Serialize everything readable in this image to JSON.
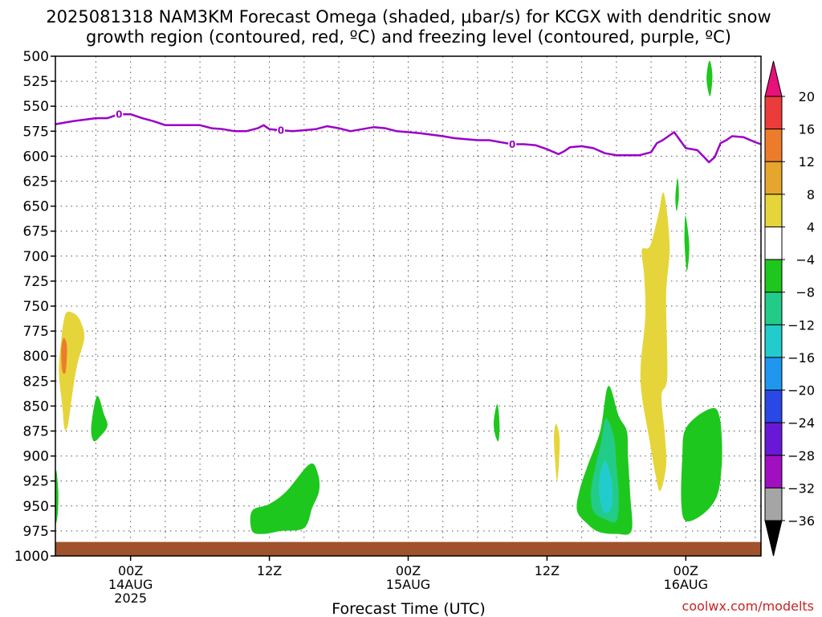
{
  "chart_data": {
    "type": "heatmap",
    "title_line1": "2025081318 NAM3KM Forecast Omega (shaded, μbar/s) for KCGX with dendritic snow",
    "title_line2": "growth region (contoured, red, ºC) and freezing level (contoured, purple, ºC)",
    "xlabel": "Forecast Time (UTC)",
    "credit": "coolwx.com/modelts",
    "yaxis": {
      "reversed": true,
      "range": [
        500,
        1000
      ],
      "ticks": [
        500,
        525,
        550,
        575,
        600,
        625,
        650,
        675,
        700,
        725,
        750,
        775,
        800,
        825,
        850,
        875,
        900,
        925,
        950,
        975,
        1000
      ]
    },
    "xaxis": {
      "range_hours": [
        -6.5,
        54.5
      ],
      "ticks": [
        {
          "hour": 0,
          "lines": [
            "00Z",
            "14AUG",
            "2025"
          ]
        },
        {
          "hour": 12,
          "lines": [
            "12Z"
          ]
        },
        {
          "hour": 24,
          "lines": [
            "00Z",
            "15AUG"
          ]
        },
        {
          "hour": 36,
          "lines": [
            "12Z"
          ]
        },
        {
          "hour": 48,
          "lines": [
            "00Z",
            "16AUG"
          ]
        }
      ],
      "grid_hours": [
        -3,
        0,
        3,
        6,
        9,
        12,
        15,
        18,
        21,
        24,
        27,
        30,
        33,
        36,
        39,
        42,
        45,
        48,
        51,
        54
      ]
    },
    "colorbar": {
      "labels": [
        "20",
        "16",
        "12",
        "8",
        "4",
        "−4",
        "−8",
        "−12",
        "−16",
        "−20",
        "−24",
        "−28",
        "−32",
        "−36"
      ],
      "bins": [
        {
          "color": "#e8107a"
        },
        {
          "color": "#ec3b3b"
        },
        {
          "color": "#ec7c2c"
        },
        {
          "color": "#e6a62e"
        },
        {
          "color": "#e6d53a"
        },
        {
          "color": "#ffffff"
        },
        {
          "color": "#1ec71e"
        },
        {
          "color": "#22cc88"
        },
        {
          "color": "#22cccc"
        },
        {
          "color": "#1f97ef"
        },
        {
          "color": "#2a48e6"
        },
        {
          "color": "#6a18d8"
        },
        {
          "color": "#a010c0"
        },
        {
          "color": "#a5a5a5"
        },
        {
          "color": "#000000"
        }
      ]
    },
    "freezing_level": {
      "color": "#9b00c8",
      "label": "0",
      "label_hours": [
        -1,
        13,
        33
      ],
      "points": [
        [
          -6.5,
          568
        ],
        [
          -5,
          565
        ],
        [
          -3,
          562
        ],
        [
          -2,
          562
        ],
        [
          -1,
          558
        ],
        [
          0,
          558
        ],
        [
          1,
          562
        ],
        [
          2,
          565
        ],
        [
          3,
          569
        ],
        [
          5,
          569
        ],
        [
          6,
          569
        ],
        [
          7,
          572
        ],
        [
          8,
          573
        ],
        [
          9,
          575
        ],
        [
          10,
          575
        ],
        [
          11,
          572
        ],
        [
          11.5,
          569
        ],
        [
          12,
          573
        ],
        [
          13,
          574
        ],
        [
          14,
          575
        ],
        [
          15,
          574
        ],
        [
          16,
          573
        ],
        [
          17,
          570
        ],
        [
          18,
          572
        ],
        [
          19,
          575
        ],
        [
          20,
          573
        ],
        [
          21,
          571
        ],
        [
          22,
          572
        ],
        [
          23,
          575
        ],
        [
          24,
          576
        ],
        [
          25,
          577
        ],
        [
          27,
          580
        ],
        [
          28,
          582
        ],
        [
          30,
          584
        ],
        [
          31,
          584
        ],
        [
          32,
          586
        ],
        [
          33,
          588
        ],
        [
          34,
          588
        ],
        [
          35,
          589
        ],
        [
          36,
          593
        ],
        [
          37,
          598
        ],
        [
          37.5,
          595
        ],
        [
          38,
          591
        ],
        [
          39,
          590
        ],
        [
          40,
          592
        ],
        [
          41,
          597
        ],
        [
          42,
          599
        ],
        [
          43,
          599
        ],
        [
          44,
          599
        ],
        [
          45,
          596
        ],
        [
          45.5,
          587
        ],
        [
          46,
          584
        ],
        [
          47,
          576
        ],
        [
          47.5,
          584
        ],
        [
          48,
          592
        ],
        [
          49,
          594
        ],
        [
          49.5,
          600
        ],
        [
          50,
          606
        ],
        [
          50.5,
          601
        ],
        [
          51,
          587
        ],
        [
          51.5,
          584
        ],
        [
          52,
          580
        ],
        [
          53,
          581
        ],
        [
          54,
          586
        ],
        [
          54.5,
          588
        ]
      ]
    },
    "ground_color": "#a0522d",
    "shaded_regions": [
      {
        "bin": "4 to 8",
        "color": "#e6d53a",
        "points": [
          [
            -5.5,
            756
          ],
          [
            -4.8,
            758
          ],
          [
            -4.3,
            766
          ],
          [
            -4,
            782
          ],
          [
            -4.6,
            808
          ],
          [
            -5,
            835
          ],
          [
            -5.4,
            868
          ],
          [
            -5.7,
            873
          ],
          [
            -5.9,
            850
          ],
          [
            -6.2,
            815
          ],
          [
            -6,
            785
          ],
          [
            -5.8,
            766
          ]
        ]
      },
      {
        "bin": "12 to 16",
        "color": "#ec7c2c",
        "points": [
          [
            -5.8,
            782
          ],
          [
            -5.5,
            790
          ],
          [
            -5.6,
            815
          ],
          [
            -5.9,
            815
          ],
          [
            -6,
            795
          ]
        ]
      },
      {
        "bin": "-4 to -8",
        "color": "#1ec71e",
        "points": [
          [
            -6.45,
            915
          ],
          [
            -6.25,
            935
          ],
          [
            -6.3,
            958
          ],
          [
            -6.5,
            965
          ]
        ]
      },
      {
        "bin": "-4 to -8",
        "color": "#1ec71e",
        "points": [
          [
            -2.9,
            840
          ],
          [
            -2.3,
            858
          ],
          [
            -2,
            870
          ],
          [
            -2.6,
            880
          ],
          [
            -3.2,
            885
          ],
          [
            -3.4,
            870
          ]
        ]
      },
      {
        "bin": "-4 to -8",
        "color": "#1ec71e",
        "points": [
          [
            10.5,
            955
          ],
          [
            12,
            948
          ],
          [
            13.5,
            935
          ],
          [
            15.5,
            908
          ],
          [
            16.2,
            918
          ],
          [
            16.3,
            935
          ],
          [
            15.7,
            952
          ],
          [
            15,
            972
          ],
          [
            13,
            975
          ],
          [
            11.5,
            978
          ],
          [
            10.5,
            975
          ]
        ]
      },
      {
        "bin": "-4 to -8",
        "color": "#1ec71e",
        "points": [
          [
            31.7,
            848
          ],
          [
            31.9,
            868
          ],
          [
            31.8,
            885
          ],
          [
            31.5,
            878
          ],
          [
            31.4,
            865
          ]
        ]
      },
      {
        "bin": "4 to 8",
        "color": "#e6d53a",
        "points": [
          [
            36.8,
            868
          ],
          [
            37.1,
            885
          ],
          [
            36.9,
            925
          ],
          [
            36.7,
            905
          ],
          [
            36.6,
            880
          ]
        ]
      },
      {
        "bin": "-4 to -8",
        "color": "#1ec71e",
        "points": [
          [
            41.3,
            830
          ],
          [
            42.2,
            860
          ],
          [
            42.9,
            875
          ],
          [
            43,
            900
          ],
          [
            43.2,
            940
          ],
          [
            43.3,
            975
          ],
          [
            42,
            978
          ],
          [
            40.5,
            976
          ],
          [
            39.5,
            968
          ],
          [
            38.6,
            955
          ],
          [
            38.8,
            935
          ],
          [
            39.5,
            910
          ],
          [
            40.6,
            875
          ]
        ]
      },
      {
        "bin": "-8 to -12",
        "color": "#22cc88",
        "points": [
          [
            41.1,
            862
          ],
          [
            41.8,
            882
          ],
          [
            42,
            910
          ],
          [
            42.2,
            940
          ],
          [
            42,
            965
          ],
          [
            41,
            963
          ],
          [
            40,
            955
          ],
          [
            39.8,
            935
          ],
          [
            40.2,
            910
          ],
          [
            40.7,
            885
          ]
        ]
      },
      {
        "bin": "-12 to -16",
        "color": "#22cccc",
        "points": [
          [
            41,
            905
          ],
          [
            41.6,
            925
          ],
          [
            41.6,
            950
          ],
          [
            41,
            957
          ],
          [
            40.6,
            945
          ],
          [
            40.5,
            925
          ]
        ]
      },
      {
        "bin": "4 to 8",
        "color": "#e6d53a",
        "points": [
          [
            46.1,
            637
          ],
          [
            46.6,
            690
          ],
          [
            46.3,
            740
          ],
          [
            46.4,
            820
          ],
          [
            45.9,
            840
          ],
          [
            46.2,
            880
          ],
          [
            46.3,
            910
          ],
          [
            45.8,
            935
          ],
          [
            45.4,
            920
          ],
          [
            44.8,
            880
          ],
          [
            44.2,
            840
          ],
          [
            44.1,
            810
          ],
          [
            44.5,
            760
          ],
          [
            44.4,
            720
          ],
          [
            44.2,
            694
          ],
          [
            44.9,
            690
          ],
          [
            45.6,
            660
          ]
        ]
      },
      {
        "bin": "-4 to -8",
        "color": "#1ec71e",
        "points": [
          [
            47.3,
            622
          ],
          [
            47.4,
            640
          ],
          [
            47.2,
            655
          ],
          [
            47.1,
            640
          ]
        ]
      },
      {
        "bin": "-4 to -8",
        "color": "#1ec71e",
        "points": [
          [
            50.1,
            505
          ],
          [
            50.3,
            520
          ],
          [
            50.1,
            540
          ],
          [
            49.8,
            525
          ],
          [
            49.9,
            510
          ]
        ]
      },
      {
        "bin": "-4 to -8",
        "color": "#1ec71e",
        "points": [
          [
            48,
            660
          ],
          [
            48.3,
            690
          ],
          [
            48.1,
            715
          ],
          [
            47.9,
            690
          ],
          [
            47.9,
            670
          ]
        ]
      },
      {
        "bin": "-4 to -8",
        "color": "#1ec71e",
        "points": [
          [
            50.4,
            852
          ],
          [
            50.9,
            860
          ],
          [
            51.1,
            880
          ],
          [
            51.1,
            910
          ],
          [
            50.7,
            940
          ],
          [
            49.5,
            958
          ],
          [
            48,
            965
          ],
          [
            47.6,
            945
          ],
          [
            47.7,
            900
          ],
          [
            47.9,
            875
          ],
          [
            49,
            860
          ]
        ]
      }
    ]
  }
}
